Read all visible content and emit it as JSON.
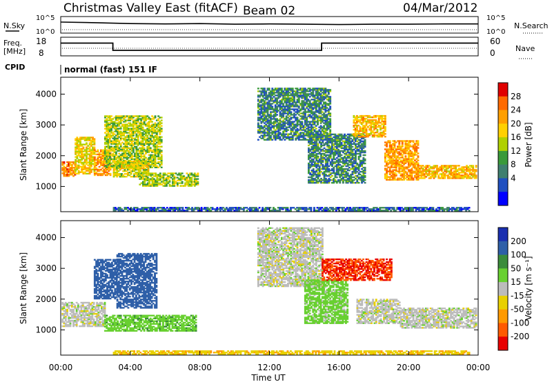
{
  "header": {
    "station": "Christmas Valley East (fitACF)",
    "beam": "Beam 02",
    "date": "04/Mar/2012"
  },
  "strip_labels": {
    "nsky": "N.Sky",
    "nsearch": "N.Search",
    "freq_line1": "Freq.",
    "freq_line2": "[MHz]",
    "nave": "Nave",
    "cpid": "CPID",
    "cpid_value": "normal (fast) 151 IF",
    "noise_ticks": [
      "10^5",
      "10^0"
    ],
    "freq_ticks": [
      "18",
      "8"
    ],
    "nave_ticks": [
      "60",
      "0"
    ]
  },
  "power_colorbar": {
    "label": "Power [dB]",
    "ticks": [
      "28",
      "24",
      "20",
      "16",
      "12",
      "8",
      "4"
    ],
    "colors": [
      "#e00000",
      "#ff6a00",
      "#ff9f00",
      "#ffd000",
      "#b0d000",
      "#3a9a3a",
      "#3f7f6f",
      "#2050c0",
      "#0000ff"
    ]
  },
  "velocity_colorbar": {
    "label": "Velocity [m s⁻¹]",
    "ticks": [
      "200",
      "100",
      "50",
      "15",
      "-15",
      "-50",
      "-100",
      "-200"
    ],
    "colors": [
      "#1a2fb0",
      "#2e5fa8",
      "#3b8c3b",
      "#68d030",
      "#bcbcbc",
      "#e8d000",
      "#ff9a00",
      "#ff5a00",
      "#e80000"
    ]
  },
  "chart_data": [
    {
      "type": "heatmap",
      "name": "power",
      "ylabel": "Slant Range [km]",
      "yticks": [
        1000,
        2000,
        3000,
        4000
      ],
      "ylim": [
        180,
        4550
      ],
      "xlim": [
        0,
        24
      ],
      "regions": [
        {
          "t0": 0.05,
          "t1": 0.8,
          "r0": 1320,
          "r1": 1780,
          "v": 24
        },
        {
          "t0": 0.8,
          "t1": 1.9,
          "r0": 1400,
          "r1": 2600,
          "v": 18
        },
        {
          "t0": 1.9,
          "t1": 2.8,
          "r0": 1350,
          "r1": 2200,
          "v": 22
        },
        {
          "t0": 2.5,
          "t1": 5.8,
          "r0": 1600,
          "r1": 3300,
          "v": 14
        },
        {
          "t0": 3.0,
          "t1": 5.0,
          "r0": 1300,
          "r1": 1800,
          "v": 16
        },
        {
          "t0": 4.5,
          "t1": 7.9,
          "r0": 1000,
          "r1": 1450,
          "v": 14
        },
        {
          "t0": 11.3,
          "t1": 15.5,
          "r0": 2500,
          "r1": 4200,
          "v": 8
        },
        {
          "t0": 14.2,
          "t1": 17.5,
          "r0": 1100,
          "r1": 2700,
          "v": 8
        },
        {
          "t0": 16.8,
          "t1": 18.6,
          "r0": 2600,
          "r1": 3300,
          "v": 20
        },
        {
          "t0": 18.6,
          "t1": 20.5,
          "r0": 1200,
          "r1": 2500,
          "v": 22
        },
        {
          "t0": 20.5,
          "t1": 23.9,
          "r0": 1250,
          "r1": 1700,
          "v": 20
        },
        {
          "t0": 3.0,
          "t1": 23.5,
          "r0": 200,
          "r1": 330,
          "v": 6
        }
      ]
    },
    {
      "type": "heatmap",
      "name": "velocity",
      "ylabel": "Slant Range [km]",
      "yticks": [
        1000,
        2000,
        3000,
        4000
      ],
      "ylim": [
        180,
        4550
      ],
      "xlim": [
        0,
        24
      ],
      "xlabel": "Time UT",
      "xticks": [
        "00:00",
        "04:00",
        "08:00",
        "12:00",
        "16:00",
        "20:00",
        "00:00"
      ],
      "regions": [
        {
          "t0": 0.05,
          "t1": 2.5,
          "r0": 1100,
          "r1": 1900,
          "v": 0
        },
        {
          "t0": 1.9,
          "t1": 3.2,
          "r0": 2000,
          "r1": 3300,
          "v": 150
        },
        {
          "t0": 3.2,
          "t1": 5.5,
          "r0": 1700,
          "r1": 3500,
          "v": 120
        },
        {
          "t0": 2.5,
          "t1": 7.8,
          "r0": 950,
          "r1": 1450,
          "v": 35
        },
        {
          "t0": 11.3,
          "t1": 15.0,
          "r0": 2400,
          "r1": 4300,
          "v": 0
        },
        {
          "t0": 14.0,
          "t1": 16.5,
          "r0": 1200,
          "r1": 2600,
          "v": 30
        },
        {
          "t0": 15.0,
          "t1": 19.0,
          "r0": 2600,
          "r1": 3300,
          "v": -200
        },
        {
          "t0": 17.0,
          "t1": 19.5,
          "r0": 1200,
          "r1": 2000,
          "v": 0
        },
        {
          "t0": 19.5,
          "t1": 23.9,
          "r0": 1050,
          "r1": 1700,
          "v": 0
        },
        {
          "t0": 3.0,
          "t1": 23.5,
          "r0": 200,
          "r1": 330,
          "v": -40
        }
      ]
    },
    {
      "type": "line",
      "name": "frequency",
      "x": [
        0,
        3.0,
        3.0,
        15.0,
        15.0,
        24
      ],
      "values": [
        15,
        15,
        10.8,
        10.8,
        15,
        15
      ],
      "ylim": [
        8,
        18
      ]
    },
    {
      "type": "line",
      "name": "nsky",
      "x": [
        0,
        2,
        4,
        6,
        8,
        10,
        12,
        14,
        16,
        18,
        20,
        22,
        24
      ],
      "values": [
        3.4,
        3.2,
        2.9,
        2.8,
        2.9,
        2.7,
        2.8,
        2.7,
        2.6,
        2.7,
        2.7,
        2.8,
        2.8
      ],
      "ylim": [
        0,
        5
      ]
    }
  ]
}
